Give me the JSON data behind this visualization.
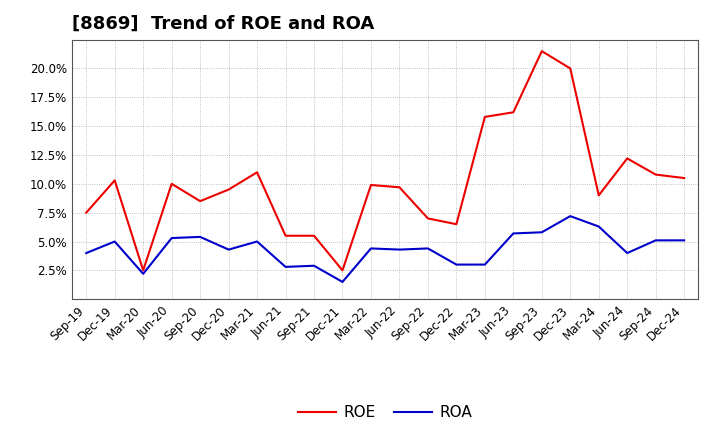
{
  "title": "[8869]  Trend of ROE and ROA",
  "x_labels": [
    "Sep-19",
    "Dec-19",
    "Mar-20",
    "Jun-20",
    "Sep-20",
    "Dec-20",
    "Mar-21",
    "Jun-21",
    "Sep-21",
    "Dec-21",
    "Mar-22",
    "Jun-22",
    "Sep-22",
    "Dec-22",
    "Mar-23",
    "Jun-23",
    "Sep-23",
    "Dec-23",
    "Mar-24",
    "Jun-24",
    "Sep-24",
    "Dec-24"
  ],
  "roe": [
    7.5,
    10.3,
    2.5,
    10.0,
    8.5,
    9.5,
    11.0,
    5.5,
    5.5,
    2.5,
    9.9,
    9.7,
    7.0,
    6.5,
    15.8,
    16.2,
    21.5,
    20.0,
    9.0,
    12.2,
    10.8,
    10.5
  ],
  "roa": [
    4.0,
    5.0,
    2.2,
    5.3,
    5.4,
    4.3,
    5.0,
    2.8,
    2.9,
    1.5,
    4.4,
    4.3,
    4.4,
    3.0,
    3.0,
    5.7,
    5.8,
    7.2,
    6.3,
    4.0,
    5.1,
    5.1
  ],
  "roe_color": "#ee0000",
  "roa_color": "#0000cc",
  "background_color": "#ffffff",
  "grid_color": "#999999",
  "ylim": [
    0,
    22.5
  ],
  "yticks": [
    2.5,
    5.0,
    7.5,
    10.0,
    12.5,
    15.0,
    17.5,
    20.0
  ],
  "title_fontsize": 13,
  "legend_fontsize": 11,
  "tick_fontsize": 8.5,
  "line_width": 1.5
}
